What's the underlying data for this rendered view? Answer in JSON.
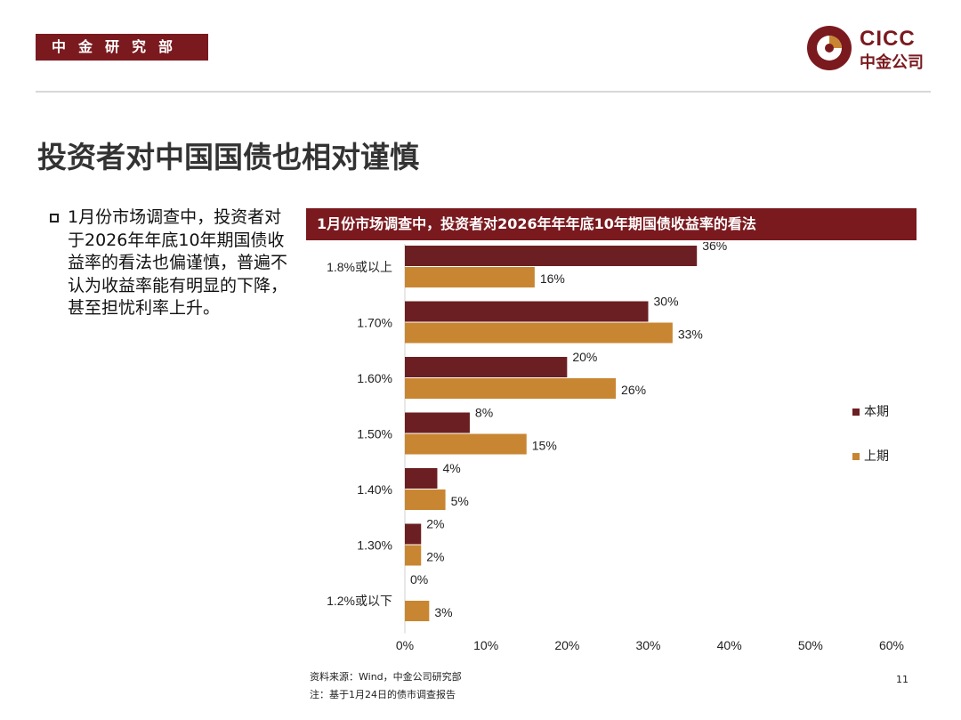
{
  "header": {
    "department": "中金研究部"
  },
  "logo": {
    "en": "CICC",
    "cn": "中金公司"
  },
  "page_title": "投资者对中国国债也相对谨慎",
  "bullet": "1月份市场调查中，投资者对于2026年年底10年期国债收益率的看法也偏谨慎，普遍不认为收益率能有明显的下降，甚至担忧利率上升。",
  "chart_header": "1月份市场调查中，投资者对2026年年年底10年期国债收益率的看法",
  "colors": {
    "current": "#6b1f22",
    "previous": "#c88632",
    "brand": "#7a1a1f"
  },
  "chart_data": {
    "type": "bar",
    "orientation": "horizontal",
    "categories": [
      "1.8%或以上",
      "1.70%",
      "1.60%",
      "1.50%",
      "1.40%",
      "1.30%",
      "1.2%或以下"
    ],
    "series": [
      {
        "name": "本期",
        "values": [
          36,
          30,
          20,
          8,
          4,
          2,
          0
        ],
        "labels": [
          "36%",
          "30%",
          "20%",
          "8%",
          "4%",
          "2%",
          "0%"
        ]
      },
      {
        "name": "上期",
        "values": [
          16,
          33,
          26,
          15,
          5,
          2,
          3
        ],
        "labels": [
          "16%",
          "33%",
          "26%",
          "15%",
          "5%",
          "2%",
          "3%"
        ]
      }
    ],
    "xlim": [
      0,
      60
    ],
    "xticks": [
      "0%",
      "10%",
      "20%",
      "30%",
      "40%",
      "50%",
      "60%"
    ],
    "legend": "right"
  },
  "footer": {
    "source": "资料来源：Wind，中金公司研究部",
    "note": "注：基于1月24日的债市调查报告",
    "page": "11"
  }
}
